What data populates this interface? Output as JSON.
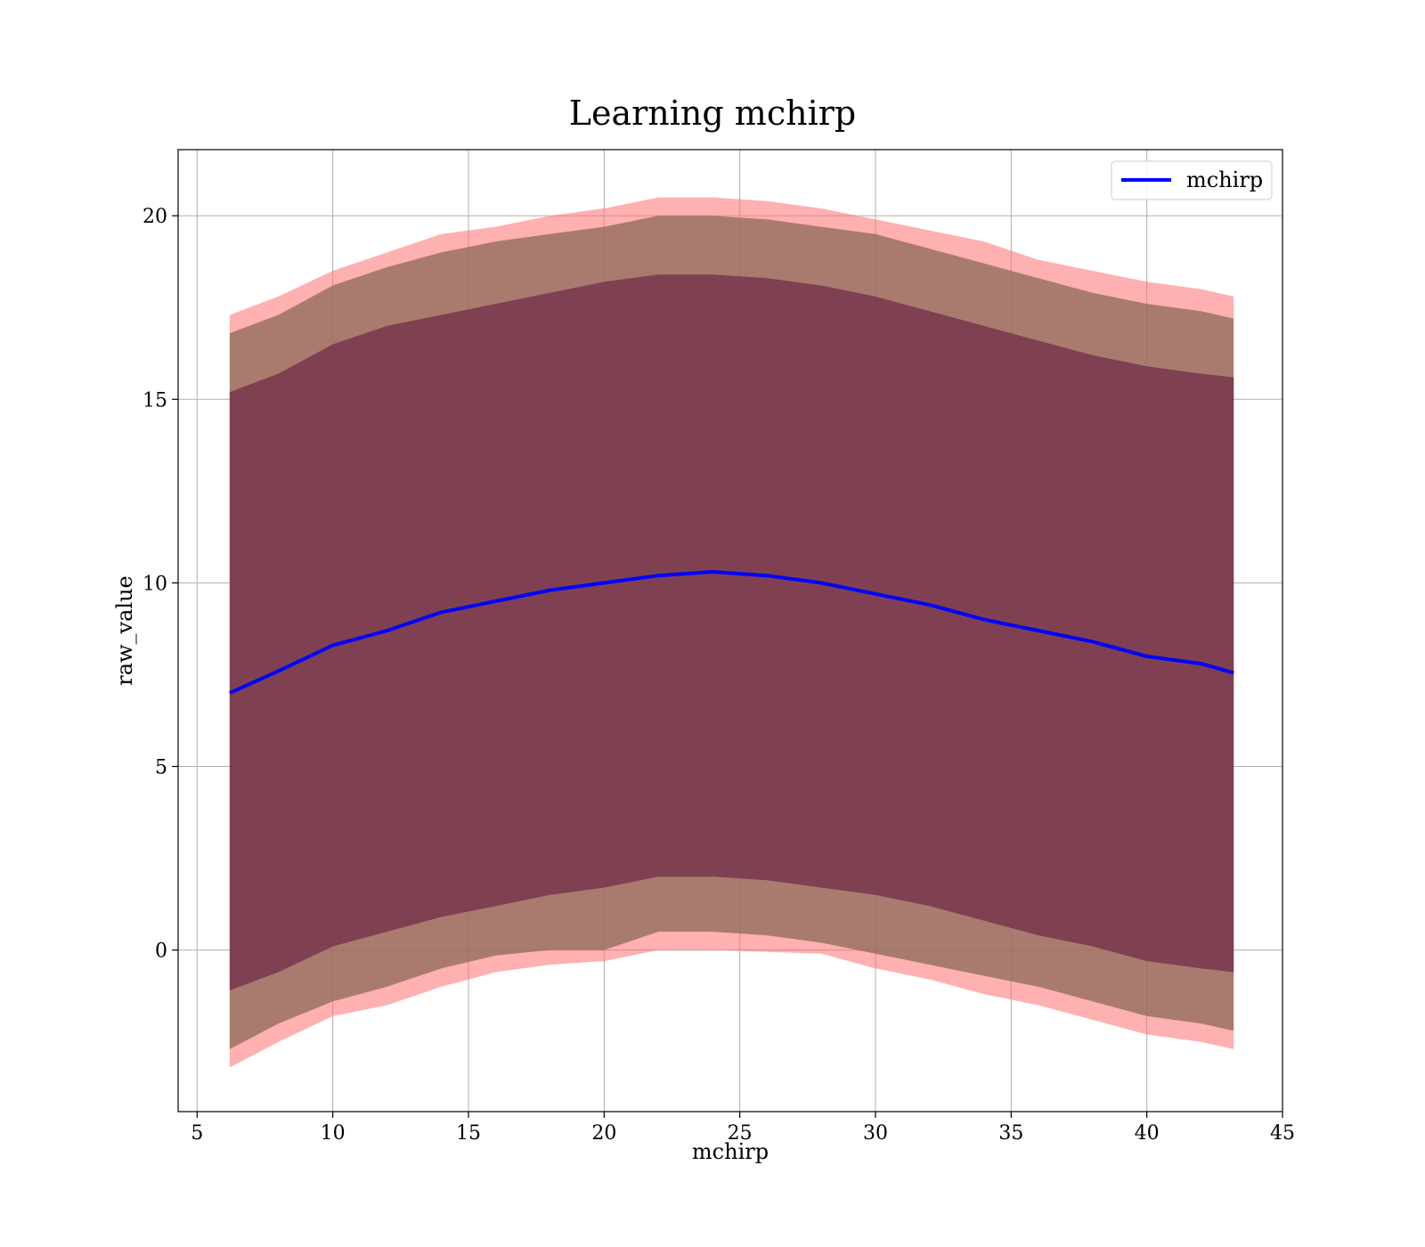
{
  "chart_data": {
    "type": "line",
    "title": "Learning mchirp",
    "xlabel": "mchirp",
    "ylabel": "raw_value",
    "xlim": [
      4.3,
      45
    ],
    "ylim": [
      -4.4,
      21.8
    ],
    "xticks": [
      5,
      10,
      15,
      20,
      25,
      30,
      35,
      40,
      45
    ],
    "yticks": [
      0,
      5,
      10,
      15,
      20
    ],
    "grid": true,
    "legend_position": "top-right",
    "colors": {
      "line": "#0000ff",
      "band_outer": "#ff6f6f",
      "band_middle": "#8c6a5a",
      "band_inner": "#7a3b4e"
    },
    "series": [
      {
        "name": "mchirp",
        "x": [
          6.2,
          8,
          10,
          12,
          14,
          16,
          18,
          20,
          22,
          24,
          26,
          28,
          30,
          32,
          34,
          36,
          38,
          40,
          42,
          43.2
        ],
        "y": [
          7.0,
          7.6,
          8.3,
          8.7,
          9.2,
          9.5,
          9.8,
          10.0,
          10.2,
          10.3,
          10.2,
          10.0,
          9.7,
          9.4,
          9.0,
          8.7,
          8.4,
          8.0,
          7.8,
          7.55
        ]
      }
    ],
    "bands": [
      {
        "lower": [
          -3.2,
          -2.5,
          -1.8,
          -1.5,
          -1.0,
          -0.6,
          -0.4,
          -0.3,
          0.0,
          0.0,
          -0.05,
          -0.1,
          -0.5,
          -0.8,
          -1.2,
          -1.5,
          -1.9,
          -2.3,
          -2.5,
          -2.7
        ],
        "upper": [
          17.3,
          17.8,
          18.5,
          19.0,
          19.5,
          19.7,
          20.0,
          20.2,
          20.5,
          20.5,
          20.4,
          20.2,
          19.9,
          19.6,
          19.3,
          18.8,
          18.5,
          18.2,
          18.0,
          17.8
        ]
      },
      {
        "lower": [
          -2.7,
          -2.0,
          -1.4,
          -1.0,
          -0.5,
          -0.15,
          0.0,
          0.0,
          0.5,
          0.5,
          0.4,
          0.2,
          -0.1,
          -0.4,
          -0.7,
          -1.0,
          -1.4,
          -1.8,
          -2.0,
          -2.2
        ],
        "upper": [
          16.8,
          17.3,
          18.1,
          18.6,
          19.0,
          19.3,
          19.5,
          19.7,
          20.0,
          20.0,
          19.9,
          19.7,
          19.5,
          19.1,
          18.7,
          18.3,
          17.9,
          17.6,
          17.4,
          17.2
        ]
      },
      {
        "lower": [
          -1.1,
          -0.6,
          0.1,
          0.5,
          0.9,
          1.2,
          1.5,
          1.7,
          2.0,
          2.0,
          1.9,
          1.7,
          1.5,
          1.2,
          0.8,
          0.4,
          0.1,
          -0.3,
          -0.5,
          -0.6
        ],
        "upper": [
          15.2,
          15.7,
          16.5,
          17.0,
          17.3,
          17.6,
          17.9,
          18.2,
          18.4,
          18.4,
          18.3,
          18.1,
          17.8,
          17.4,
          17.0,
          16.6,
          16.2,
          15.9,
          15.7,
          15.6
        ]
      }
    ]
  }
}
